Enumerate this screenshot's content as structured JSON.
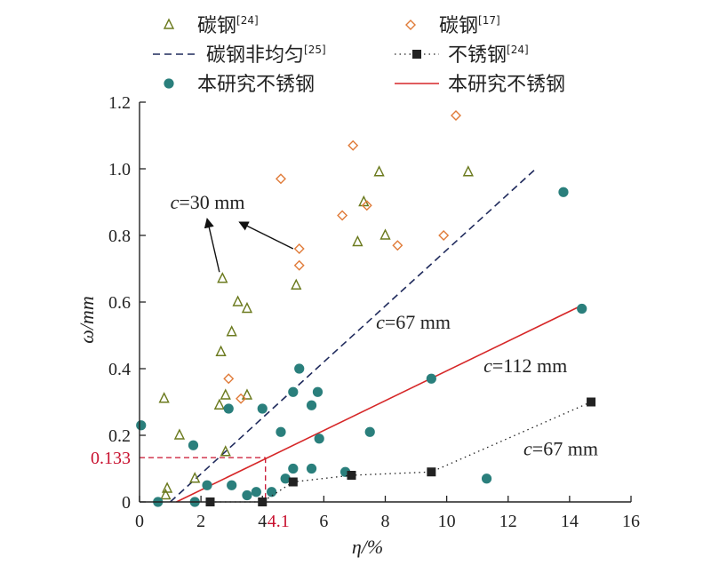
{
  "chart_data": {
    "type": "scatter",
    "xlabel": "η/%",
    "ylabel": "ω/mm",
    "xlim": [
      0,
      16
    ],
    "ylim": [
      0,
      1.2
    ],
    "xticks": [
      "0",
      "2",
      "4",
      "6",
      "8",
      "10",
      "12",
      "14",
      "16"
    ],
    "yticks": [
      "0",
      "0.2",
      "0.4",
      "0.6",
      "0.8",
      "1.0",
      "1.2"
    ],
    "legend": [
      {
        "label": "碳钢",
        "sup": "[24]",
        "marker": "triangle",
        "color": "#6b7a1e"
      },
      {
        "label": "碳钢",
        "sup": "[17]",
        "marker": "diamond",
        "color": "#e07b39"
      },
      {
        "label": "碳钢非均匀",
        "sup": "[25]",
        "marker": "dashed-line",
        "color": "#1f2a5c"
      },
      {
        "label": "不锈钢",
        "sup": "[24]",
        "marker": "dotted-square",
        "color": "#222222"
      },
      {
        "label": "本研究不锈钢",
        "sup": "",
        "marker": "circle",
        "color": "#2a7f7c"
      },
      {
        "label": "本研究不锈钢",
        "sup": "",
        "marker": "solid-line",
        "color": "#d62728"
      }
    ],
    "series": [
      {
        "name": "碳钢[24]",
        "marker": "triangle",
        "color": "#6b7a1e",
        "points": [
          [
            0.8,
            0.31
          ],
          [
            0.9,
            0.04
          ],
          [
            0.85,
            0.02
          ],
          [
            1.3,
            0.2
          ],
          [
            1.8,
            0.07
          ],
          [
            2.6,
            0.29
          ],
          [
            2.65,
            0.45
          ],
          [
            2.7,
            0.67
          ],
          [
            2.8,
            0.32
          ],
          [
            3.0,
            0.51
          ],
          [
            3.2,
            0.6
          ],
          [
            3.5,
            0.58
          ],
          [
            3.5,
            0.32
          ],
          [
            5.1,
            0.65
          ],
          [
            7.1,
            0.78
          ],
          [
            7.3,
            0.9
          ],
          [
            7.8,
            0.99
          ],
          [
            8.0,
            0.8
          ],
          [
            10.7,
            0.99
          ],
          [
            2.8,
            0.15
          ]
        ]
      },
      {
        "name": "碳钢[17]",
        "marker": "diamond",
        "color": "#e07b39",
        "points": [
          [
            2.9,
            0.37
          ],
          [
            3.3,
            0.31
          ],
          [
            4.6,
            0.97
          ],
          [
            5.2,
            0.76
          ],
          [
            5.2,
            0.71
          ],
          [
            6.6,
            0.86
          ],
          [
            6.95,
            1.07
          ],
          [
            7.4,
            0.89
          ],
          [
            8.4,
            0.77
          ],
          [
            9.9,
            0.8
          ],
          [
            10.3,
            1.16
          ]
        ]
      },
      {
        "name": "本研究不锈钢",
        "marker": "circle",
        "color": "#2a7f7c",
        "points": [
          [
            0.05,
            0.23
          ],
          [
            0.6,
            0.0
          ],
          [
            1.8,
            0.0
          ],
          [
            1.75,
            0.17
          ],
          [
            2.2,
            0.05
          ],
          [
            2.9,
            0.28
          ],
          [
            3.0,
            0.05
          ],
          [
            3.5,
            0.02
          ],
          [
            3.8,
            0.03
          ],
          [
            4.0,
            0.28
          ],
          [
            4.3,
            0.03
          ],
          [
            4.6,
            0.21
          ],
          [
            4.75,
            0.07
          ],
          [
            5.0,
            0.1
          ],
          [
            5.0,
            0.33
          ],
          [
            5.2,
            0.4
          ],
          [
            5.6,
            0.29
          ],
          [
            5.6,
            0.1
          ],
          [
            5.8,
            0.33
          ],
          [
            5.85,
            0.19
          ],
          [
            6.7,
            0.09
          ],
          [
            7.5,
            0.21
          ],
          [
            9.5,
            0.37
          ],
          [
            11.3,
            0.07
          ],
          [
            13.8,
            0.93
          ],
          [
            14.4,
            0.58
          ]
        ]
      },
      {
        "name": "不锈钢[24]",
        "marker": "square",
        "color": "#222222",
        "line": "dotted",
        "points": [
          [
            2.3,
            0.0
          ],
          [
            4.0,
            0.0
          ],
          [
            5.0,
            0.06
          ],
          [
            6.9,
            0.08
          ],
          [
            9.5,
            0.09
          ],
          [
            14.7,
            0.3
          ]
        ]
      }
    ],
    "lines": [
      {
        "name": "碳钢非均匀[25]",
        "style": "dashed",
        "color": "#1f2a5c",
        "points": [
          [
            1.0,
            0.0
          ],
          [
            12.9,
            1.0
          ]
        ]
      },
      {
        "name": "本研究不锈钢",
        "style": "solid",
        "color": "#d62728",
        "points": [
          [
            1.2,
            0.0
          ],
          [
            14.4,
            0.59
          ]
        ]
      }
    ],
    "reference": {
      "x": 4.1,
      "y": 0.133,
      "x_label": "4.1",
      "y_label": "0.133",
      "color": "#c8102e"
    },
    "annotations": [
      {
        "text": "c=30 mm",
        "x": 1.0,
        "y": 0.88
      },
      {
        "text": "c=67 mm",
        "x": 7.7,
        "y": 0.52
      },
      {
        "text": "c=112 mm",
        "x": 11.2,
        "y": 0.39
      },
      {
        "text": "c=67 mm",
        "x": 12.5,
        "y": 0.14
      }
    ]
  }
}
